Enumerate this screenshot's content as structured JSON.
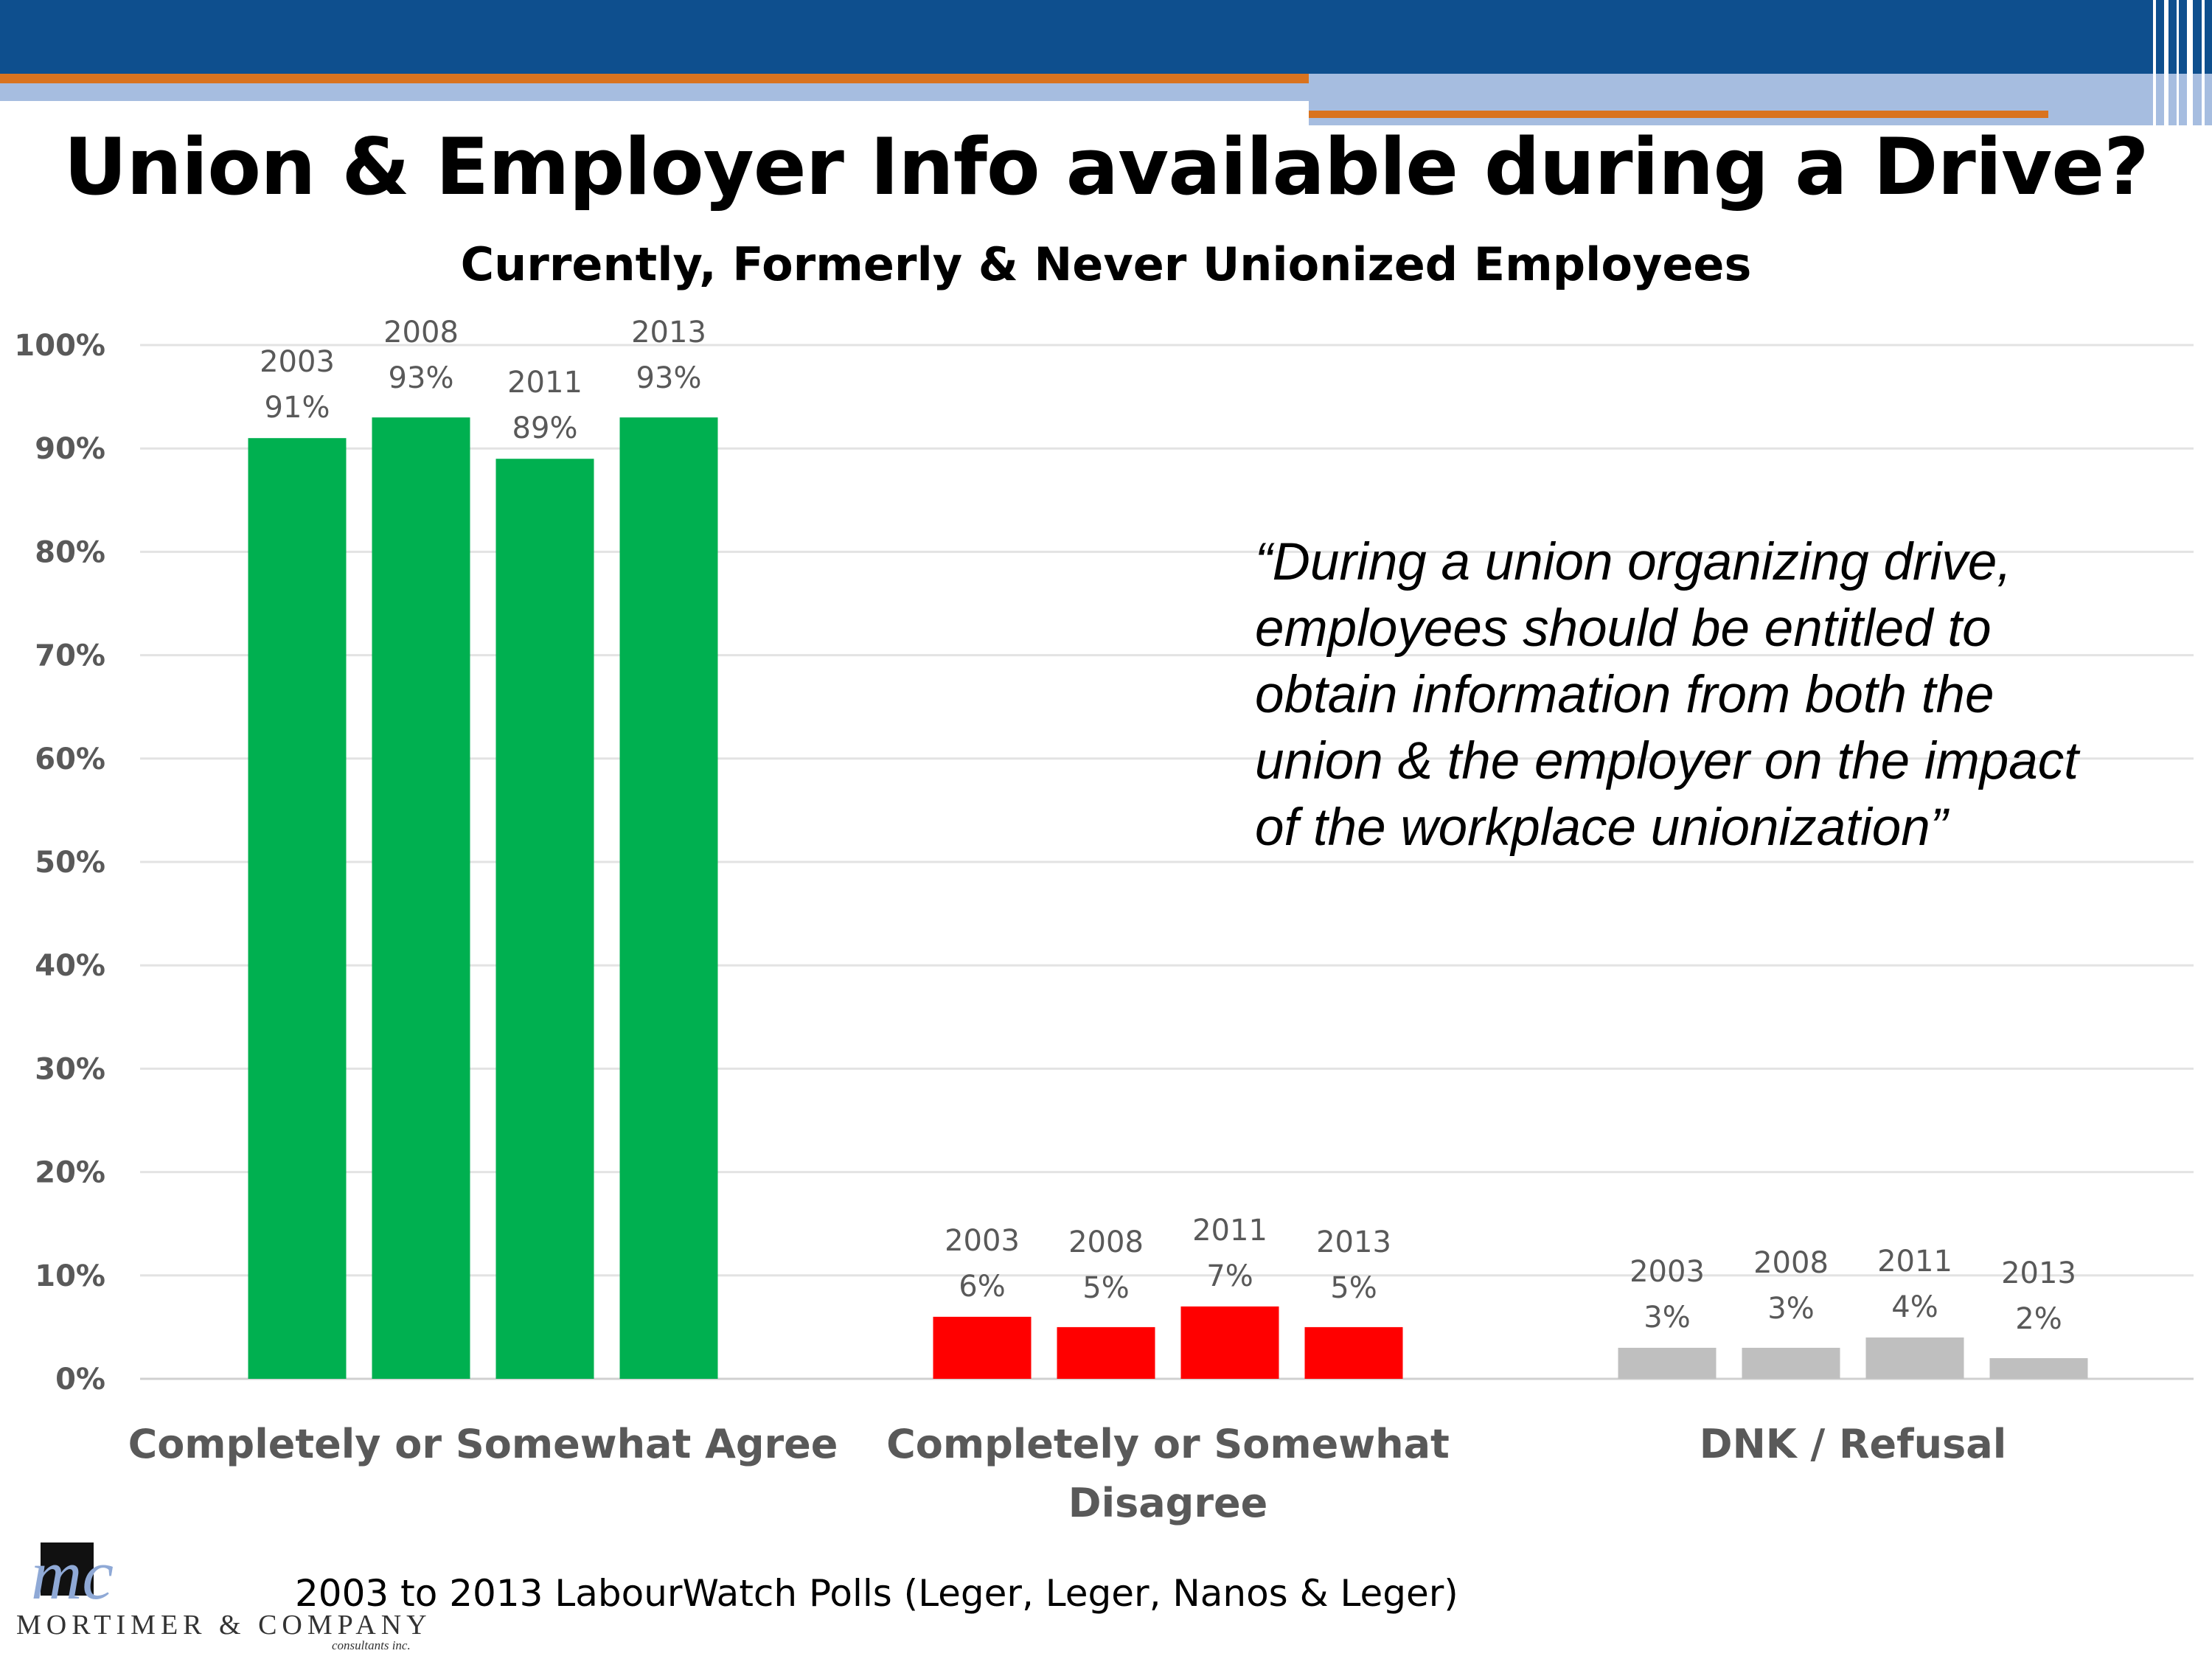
{
  "slide": {
    "title": "Union & Employer Info available during a Drive?",
    "subtitle": "Currently, Formerly & Never Unionized Employees",
    "quote": "“During a union organizing drive, employees should be entitled to obtain information from both the union & the employer on the impact of the workplace unionization”",
    "source": "2003 to 2013 LabourWatch Polls (Leger, Leger, Nanos & Leger)",
    "logo": {
      "monogram": "mc",
      "name": "MORTIMER & COMPANY",
      "tagline": "consultants inc."
    },
    "banner_colors": {
      "blue": "#0e4f8e",
      "orange": "#d9731f",
      "light_blue": "#a6bde0"
    }
  },
  "chart_data": {
    "type": "bar",
    "title": "",
    "xlabel": "",
    "ylabel": "",
    "ylim": [
      0,
      100
    ],
    "yticks": [
      "0%",
      "10%",
      "20%",
      "30%",
      "40%",
      "50%",
      "60%",
      "70%",
      "80%",
      "90%",
      "100%"
    ],
    "grid": true,
    "legend": "none",
    "groups": [
      {
        "label_lines": [
          "Completely or Somewhat Agree"
        ],
        "color": "#00b050",
        "bars": [
          {
            "year": "2003",
            "value": 91,
            "label": "91%"
          },
          {
            "year": "2008",
            "value": 93,
            "label": "93%"
          },
          {
            "year": "2011",
            "value": 89,
            "label": "89%"
          },
          {
            "year": "2013",
            "value": 93,
            "label": "93%"
          }
        ]
      },
      {
        "label_lines": [
          "Completely or Somewhat",
          "Disagree"
        ],
        "color": "#ff0000",
        "bars": [
          {
            "year": "2003",
            "value": 6,
            "label": "6%"
          },
          {
            "year": "2008",
            "value": 5,
            "label": "5%"
          },
          {
            "year": "2011",
            "value": 7,
            "label": "7%"
          },
          {
            "year": "2013",
            "value": 5,
            "label": "5%"
          }
        ]
      },
      {
        "label_lines": [
          "DNK / Refusal"
        ],
        "color": "#bfbfbf",
        "bars": [
          {
            "year": "2003",
            "value": 3,
            "label": "3%"
          },
          {
            "year": "2008",
            "value": 3,
            "label": "3%"
          },
          {
            "year": "2011",
            "value": 4,
            "label": "4%"
          },
          {
            "year": "2013",
            "value": 2,
            "label": "2%"
          }
        ]
      }
    ]
  }
}
